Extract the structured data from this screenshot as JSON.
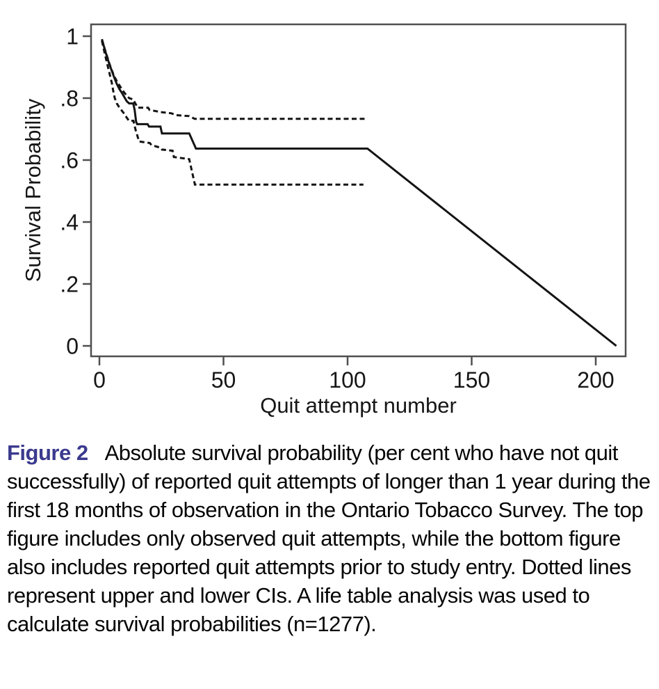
{
  "figure": {
    "caption_label": "Figure 2",
    "caption_label_color": "#3b3a8e",
    "caption_text": "Absolute survival probability (per cent who have not quit successfully) of reported quit attempts of longer than 1 year during the first 18 months of observation in the Ontario Tobacco Survey. The top figure includes only observed quit attempts, while the bottom figure also includes reported quit attempts prior to study entry. Dotted lines represent upper and lower CIs. A life table analysis was used to calculate survival probabilities (n=1277)."
  },
  "chart_data": {
    "type": "line",
    "title": "",
    "xlabel": "Quit attempt number",
    "ylabel": "Survival Probability",
    "xlim": [
      0,
      212
    ],
    "ylim": [
      -0.03,
      1.04
    ],
    "x_ticks": [
      0,
      50,
      100,
      150,
      200
    ],
    "x_tick_labels": [
      "0",
      "50",
      "100",
      "150",
      "200"
    ],
    "y_ticks": [
      0,
      0.2,
      0.4,
      0.6,
      0.8,
      1
    ],
    "y_tick_labels": [
      "0",
      ".2",
      ".4",
      ".6",
      ".8",
      "1"
    ],
    "grid": false,
    "legend": "none",
    "frame": true,
    "line_color": "#141414",
    "axis_color": "#4f4f4f",
    "series": [
      {
        "name": "survival-estimate",
        "style": "solid",
        "points": [
          [
            1,
            0.99
          ],
          [
            2,
            0.962
          ],
          [
            3,
            0.935
          ],
          [
            4,
            0.91
          ],
          [
            5,
            0.888
          ],
          [
            6,
            0.866
          ],
          [
            7,
            0.846
          ],
          [
            8,
            0.83
          ],
          [
            9,
            0.818
          ],
          [
            10,
            0.804
          ],
          [
            11,
            0.79
          ],
          [
            12,
            0.783
          ],
          [
            13.6,
            0.783
          ],
          [
            14.2,
            0.762
          ],
          [
            14.8,
            0.724
          ],
          [
            15.2,
            0.716
          ],
          [
            19.4,
            0.716
          ],
          [
            20,
            0.708
          ],
          [
            24.6,
            0.708
          ],
          [
            25.2,
            0.686
          ],
          [
            36.2,
            0.686
          ],
          [
            38.9,
            0.637
          ],
          [
            108,
            0.637
          ],
          [
            208.3,
            0
          ]
        ]
      },
      {
        "name": "upper-ci",
        "style": "dashed",
        "points": [
          [
            1,
            0.99
          ],
          [
            2,
            0.963
          ],
          [
            3,
            0.937
          ],
          [
            4,
            0.912
          ],
          [
            5,
            0.89
          ],
          [
            6,
            0.87
          ],
          [
            7,
            0.855
          ],
          [
            8,
            0.842
          ],
          [
            9,
            0.83
          ],
          [
            10,
            0.818
          ],
          [
            11,
            0.808
          ],
          [
            12,
            0.8
          ],
          [
            13.6,
            0.796
          ],
          [
            14.2,
            0.787
          ],
          [
            15.4,
            0.769
          ],
          [
            19.6,
            0.769
          ],
          [
            20.2,
            0.762
          ],
          [
            24.6,
            0.755
          ],
          [
            29,
            0.751
          ],
          [
            31,
            0.745
          ],
          [
            36.2,
            0.742
          ],
          [
            38.4,
            0.733
          ],
          [
            107.5,
            0.733
          ]
        ]
      },
      {
        "name": "lower-ci",
        "style": "dashed",
        "points": [
          [
            1,
            0.985
          ],
          [
            2,
            0.95
          ],
          [
            3,
            0.915
          ],
          [
            4,
            0.882
          ],
          [
            5,
            0.85
          ],
          [
            5.6,
            0.822
          ],
          [
            6.2,
            0.8
          ],
          [
            7,
            0.783
          ],
          [
            8,
            0.77
          ],
          [
            9,
            0.76
          ],
          [
            10,
            0.75
          ],
          [
            11,
            0.737
          ],
          [
            11.9,
            0.727
          ],
          [
            13.7,
            0.727
          ],
          [
            14.6,
            0.697
          ],
          [
            16,
            0.66
          ],
          [
            20.3,
            0.655
          ],
          [
            21,
            0.648
          ],
          [
            24.6,
            0.64
          ],
          [
            25.2,
            0.634
          ],
          [
            29.5,
            0.63
          ],
          [
            30,
            0.61
          ],
          [
            36.2,
            0.603
          ],
          [
            38.5,
            0.521
          ],
          [
            106.4,
            0.521
          ]
        ]
      }
    ]
  }
}
